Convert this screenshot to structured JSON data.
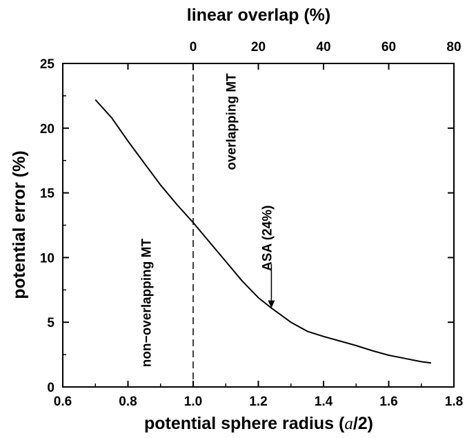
{
  "chart_data": {
    "type": "line",
    "xlabel": {
      "prefix": "potential sphere radius (",
      "italic": "a",
      "suffix": "/2)"
    },
    "ylabel": "potential error (%)",
    "top_xlabel": "linear overlap (%)",
    "xlim": [
      0.6,
      1.8
    ],
    "ylim": [
      0,
      25
    ],
    "x_ticks": [
      0.6,
      0.8,
      1.0,
      1.2,
      1.4,
      1.6,
      1.8
    ],
    "x_tick_labels": [
      "0.6",
      "0.8",
      "1.0",
      "1.2",
      "1.4",
      "1.6",
      "1.8"
    ],
    "y_ticks": [
      0,
      5,
      10,
      15,
      20,
      25
    ],
    "y_tick_labels": [
      "0",
      "5",
      "10",
      "15",
      "20",
      "25"
    ],
    "top_x_ticks": [
      0,
      20,
      40,
      60,
      80
    ],
    "top_x_tick_labels": [
      "0",
      "20",
      "40",
      "60",
      "80"
    ],
    "grid": false,
    "vline_x": 1.0,
    "series": [
      {
        "x": [
          0.7,
          0.75,
          0.8,
          0.85,
          0.9,
          0.95,
          1.0,
          1.05,
          1.1,
          1.15,
          1.2,
          1.24,
          1.3,
          1.35,
          1.4,
          1.45,
          1.5,
          1.55,
          1.6,
          1.65,
          1.7,
          1.73
        ],
        "y": [
          22.2,
          20.8,
          19.0,
          17.3,
          15.6,
          14.1,
          12.7,
          11.2,
          9.7,
          8.2,
          6.9,
          6.1,
          5.0,
          4.3,
          3.9,
          3.55,
          3.2,
          2.8,
          2.45,
          2.2,
          1.95,
          1.85
        ]
      }
    ],
    "annotations": [
      {
        "text": "non−overlapping MT",
        "x": 0.87,
        "y": 6.5
      },
      {
        "text": "overlapping MT",
        "x": 1.13,
        "y": 20.5
      },
      {
        "text": "ASA (24%)",
        "x": 1.24,
        "y": 11.5
      }
    ],
    "arrow": {
      "x": 1.24,
      "y_from": 9.5,
      "y_to": 6.1
    }
  }
}
